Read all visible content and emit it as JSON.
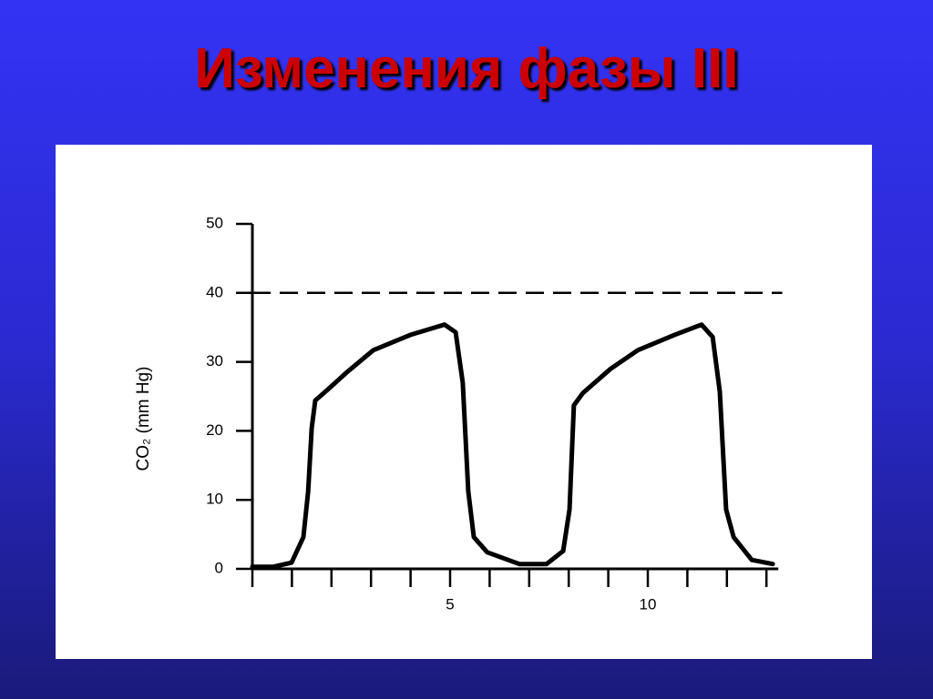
{
  "chart_data": {
    "type": "line",
    "title": "Изменения фазы III",
    "y_label": "CO₂ (mm Hg)",
    "x": [
      0,
      0.53,
      0.99,
      1.29,
      1.41,
      1.5,
      1.59,
      1.91,
      2.37,
      3.06,
      3.99,
      4.86,
      5.14,
      5.32,
      5.46,
      5.6,
      5.94,
      6.75,
      7.44,
      7.86,
      8.02,
      8.13,
      8.36,
      9.06,
      9.75,
      10.67,
      11.36,
      11.64,
      11.82,
      11.98,
      12.17,
      12.63,
      13.16
    ],
    "values": [
      0.3,
      0.3,
      0.9,
      4.6,
      11.2,
      20.4,
      24.4,
      26,
      28.4,
      31.7,
      33.9,
      35.4,
      34.3,
      27,
      11.2,
      4.6,
      2.4,
      0.7,
      0.7,
      2.6,
      8.6,
      23.7,
      25.5,
      29,
      31.7,
      33.9,
      35.4,
      33.6,
      25.7,
      8.6,
      4.6,
      1.3,
      0.7
    ],
    "color": "#000000",
    "xlim": [
      0,
      13.3
    ],
    "ylim": [
      0,
      50
    ],
    "xticks": [
      5,
      10
    ],
    "x_minor_ticks": [
      0,
      1,
      2,
      3,
      4,
      5,
      6,
      7,
      8,
      9,
      10,
      11,
      12,
      13
    ],
    "yticks": [
      0,
      10,
      20,
      30,
      40,
      50
    ],
    "reference_line": 40
  }
}
